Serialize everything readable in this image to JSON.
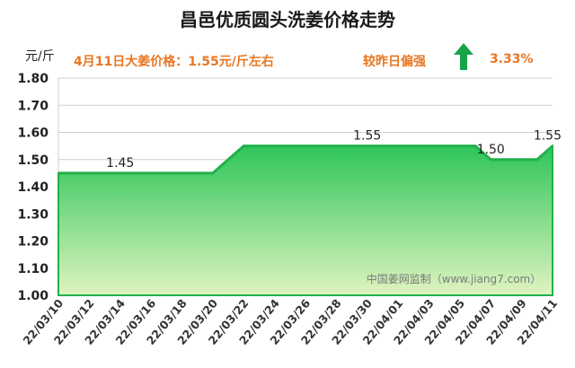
{
  "title": "昌邑优质圆头洗姜价格走势",
  "headline": "4月11日大姜价格：1.55元/斤左右",
  "comparison_label": "较昨日偏强",
  "change_percent": "3.33%",
  "change_direction": "up",
  "watermark": "中国姜网监制（www.jiang7.com）",
  "colors": {
    "area_top": "#2ec55a",
    "area_bottom": "#d9f2b8",
    "line": "#22b04b",
    "accent_text": "#e87722",
    "arrow": "#16a34a"
  },
  "chart_data": {
    "type": "area",
    "title": "昌邑优质圆头洗姜价格走势",
    "ylabel": "元/斤",
    "xlabel": "",
    "ylim": [
      1.0,
      1.8
    ],
    "yticks": [
      "1.00",
      "1.10",
      "1.20",
      "1.30",
      "1.40",
      "1.50",
      "1.60",
      "1.70",
      "1.80"
    ],
    "grid": true,
    "x_tick_labels": [
      "22/03/10",
      "22/03/12",
      "22/03/14",
      "22/03/16",
      "22/03/18",
      "22/03/20",
      "22/03/22",
      "22/03/24",
      "22/03/26",
      "22/03/28",
      "22/03/30",
      "22/04/01",
      "22/04/03",
      "22/04/05",
      "22/04/07",
      "22/04/09",
      "22/04/11"
    ],
    "x": [
      "22/03/10",
      "22/03/11",
      "22/03/12",
      "22/03/13",
      "22/03/14",
      "22/03/15",
      "22/03/16",
      "22/03/17",
      "22/03/18",
      "22/03/19",
      "22/03/20",
      "22/03/21",
      "22/03/22",
      "22/03/23",
      "22/03/24",
      "22/03/25",
      "22/03/26",
      "22/03/27",
      "22/03/28",
      "22/03/29",
      "22/03/30",
      "22/03/31",
      "22/04/01",
      "22/04/02",
      "22/04/03",
      "22/04/04",
      "22/04/05",
      "22/04/06",
      "22/04/07",
      "22/04/08",
      "22/04/09",
      "22/04/10",
      "22/04/11"
    ],
    "values": [
      1.45,
      1.45,
      1.45,
      1.45,
      1.45,
      1.45,
      1.45,
      1.45,
      1.45,
      1.45,
      1.45,
      1.5,
      1.55,
      1.55,
      1.55,
      1.55,
      1.55,
      1.55,
      1.55,
      1.55,
      1.55,
      1.55,
      1.55,
      1.55,
      1.55,
      1.55,
      1.55,
      1.55,
      1.5,
      1.5,
      1.5,
      1.5,
      1.55
    ],
    "data_labels": [
      {
        "x": "22/03/14",
        "text": "1.45"
      },
      {
        "x": "22/03/30",
        "text": "1.55"
      },
      {
        "x": "22/04/07",
        "text": "1.50"
      },
      {
        "x": "22/04/11",
        "text": "1.55"
      }
    ]
  }
}
